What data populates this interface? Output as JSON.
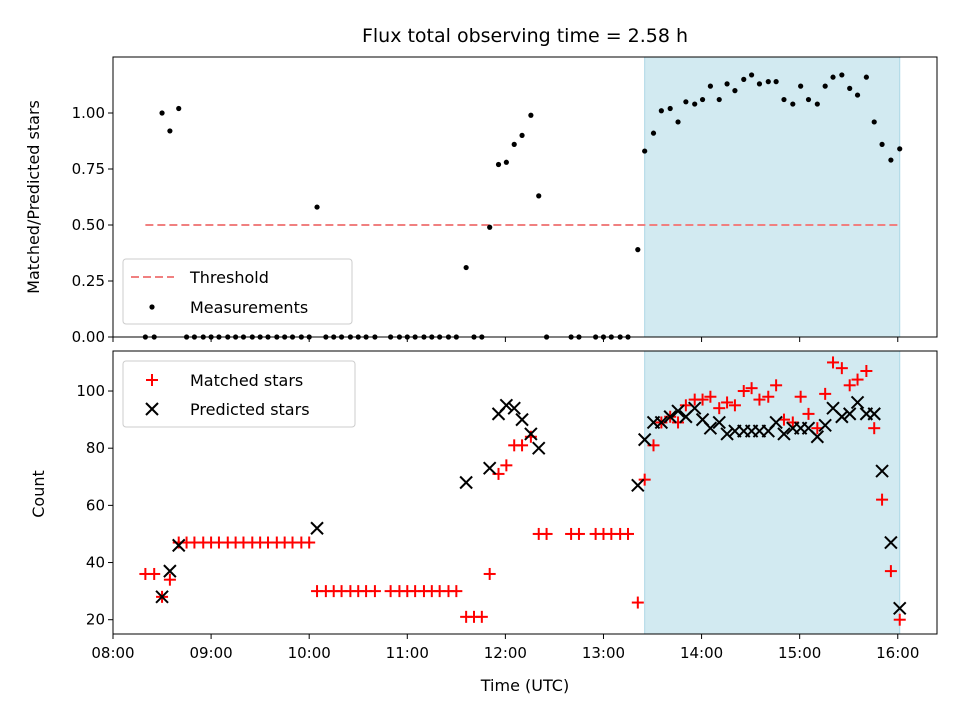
{
  "title": "Flux total observing time = 2.58 h",
  "chart_data": [
    {
      "type": "scatter",
      "ylabel": "Matched/Predicted stars",
      "ylim": [
        0,
        1.25
      ],
      "yticks": [
        0,
        0.25,
        0.5,
        0.75,
        1.0
      ],
      "ytick_labels": [
        "0.00",
        "0.25",
        "0.50",
        "0.75",
        "1.00"
      ],
      "threshold": {
        "name": "Threshold",
        "value": 0.5,
        "x_start": 8.33,
        "x_end": 16.02,
        "color": "#f08080"
      },
      "shaded_region": {
        "x_start": 13.42,
        "x_end": 16.02,
        "color": "#add8e6"
      },
      "legend": {
        "placement": "lower-left",
        "entries": [
          "Threshold",
          "Measurements"
        ]
      },
      "series": [
        {
          "name": "Measurements",
          "marker": "dot",
          "color": "#000000",
          "points": [
            [
              8.33,
              0
            ],
            [
              8.42,
              0
            ],
            [
              8.5,
              1.0
            ],
            [
              8.58,
              0.92
            ],
            [
              8.67,
              1.02
            ],
            [
              8.75,
              0
            ],
            [
              8.83,
              0
            ],
            [
              8.92,
              0
            ],
            [
              9.0,
              0
            ],
            [
              9.08,
              0
            ],
            [
              9.17,
              0
            ],
            [
              9.25,
              0
            ],
            [
              9.33,
              0
            ],
            [
              9.42,
              0
            ],
            [
              9.5,
              0
            ],
            [
              9.58,
              0
            ],
            [
              9.67,
              0
            ],
            [
              9.75,
              0
            ],
            [
              9.83,
              0
            ],
            [
              9.92,
              0
            ],
            [
              10.0,
              0
            ],
            [
              10.08,
              0.58
            ],
            [
              10.17,
              0
            ],
            [
              10.25,
              0
            ],
            [
              10.33,
              0
            ],
            [
              10.42,
              0
            ],
            [
              10.5,
              0
            ],
            [
              10.58,
              0
            ],
            [
              10.67,
              0
            ],
            [
              10.83,
              0
            ],
            [
              10.92,
              0
            ],
            [
              11.0,
              0
            ],
            [
              11.08,
              0
            ],
            [
              11.17,
              0
            ],
            [
              11.25,
              0
            ],
            [
              11.33,
              0
            ],
            [
              11.42,
              0
            ],
            [
              11.5,
              0
            ],
            [
              11.6,
              0.31
            ],
            [
              11.68,
              0
            ],
            [
              11.76,
              0
            ],
            [
              11.84,
              0.49
            ],
            [
              11.93,
              0.77
            ],
            [
              12.01,
              0.78
            ],
            [
              12.09,
              0.86
            ],
            [
              12.17,
              0.9
            ],
            [
              12.26,
              0.99
            ],
            [
              12.34,
              0.63
            ],
            [
              12.42,
              0
            ],
            [
              12.67,
              0
            ],
            [
              12.75,
              0
            ],
            [
              12.92,
              0
            ],
            [
              13.0,
              0
            ],
            [
              13.08,
              0
            ],
            [
              13.17,
              0
            ],
            [
              13.25,
              0
            ],
            [
              13.35,
              0.39
            ],
            [
              13.42,
              0.83
            ],
            [
              13.51,
              0.91
            ],
            [
              13.59,
              1.01
            ],
            [
              13.68,
              1.02
            ],
            [
              13.76,
              0.96
            ],
            [
              13.84,
              1.05
            ],
            [
              13.93,
              1.04
            ],
            [
              14.01,
              1.06
            ],
            [
              14.09,
              1.12
            ],
            [
              14.18,
              1.06
            ],
            [
              14.26,
              1.13
            ],
            [
              14.34,
              1.1
            ],
            [
              14.43,
              1.15
            ],
            [
              14.51,
              1.17
            ],
            [
              14.59,
              1.13
            ],
            [
              14.68,
              1.14
            ],
            [
              14.76,
              1.14
            ],
            [
              14.84,
              1.06
            ],
            [
              14.93,
              1.04
            ],
            [
              15.01,
              1.12
            ],
            [
              15.09,
              1.06
            ],
            [
              15.18,
              1.04
            ],
            [
              15.26,
              1.12
            ],
            [
              15.34,
              1.16
            ],
            [
              15.43,
              1.17
            ],
            [
              15.51,
              1.11
            ],
            [
              15.59,
              1.08
            ],
            [
              15.68,
              1.16
            ],
            [
              15.76,
              0.96
            ],
            [
              15.84,
              0.86
            ],
            [
              15.93,
              0.79
            ],
            [
              16.02,
              0.84
            ]
          ]
        }
      ]
    },
    {
      "type": "scatter",
      "xlabel": "Time (UTC)",
      "ylabel": "Count",
      "xlim": [
        8.0,
        16.4
      ],
      "ylim": [
        15,
        114
      ],
      "xticks": [
        8,
        9,
        10,
        11,
        12,
        13,
        14,
        15,
        16
      ],
      "xtick_labels": [
        "08:00",
        "09:00",
        "10:00",
        "11:00",
        "12:00",
        "13:00",
        "14:00",
        "15:00",
        "16:00"
      ],
      "yticks": [
        20,
        40,
        60,
        80,
        100
      ],
      "ytick_labels": [
        "20",
        "40",
        "60",
        "80",
        "100"
      ],
      "shaded_region": {
        "x_start": 13.42,
        "x_end": 16.02,
        "color": "#add8e6"
      },
      "legend": {
        "placement": "top-left",
        "entries": [
          "Matched stars",
          "Predicted stars"
        ]
      },
      "series": [
        {
          "name": "Matched stars",
          "marker": "plus",
          "color": "#ff0000",
          "points": [
            [
              8.33,
              36
            ],
            [
              8.42,
              36
            ],
            [
              8.5,
              28
            ],
            [
              8.58,
              34
            ],
            [
              8.67,
              47
            ],
            [
              8.75,
              47
            ],
            [
              8.83,
              47
            ],
            [
              8.92,
              47
            ],
            [
              9.0,
              47
            ],
            [
              9.08,
              47
            ],
            [
              9.17,
              47
            ],
            [
              9.25,
              47
            ],
            [
              9.33,
              47
            ],
            [
              9.42,
              47
            ],
            [
              9.5,
              47
            ],
            [
              9.58,
              47
            ],
            [
              9.67,
              47
            ],
            [
              9.75,
              47
            ],
            [
              9.83,
              47
            ],
            [
              9.92,
              47
            ],
            [
              10.0,
              47
            ],
            [
              10.08,
              30
            ],
            [
              10.17,
              30
            ],
            [
              10.25,
              30
            ],
            [
              10.33,
              30
            ],
            [
              10.42,
              30
            ],
            [
              10.5,
              30
            ],
            [
              10.58,
              30
            ],
            [
              10.67,
              30
            ],
            [
              10.83,
              30
            ],
            [
              10.92,
              30
            ],
            [
              11.0,
              30
            ],
            [
              11.08,
              30
            ],
            [
              11.17,
              30
            ],
            [
              11.25,
              30
            ],
            [
              11.33,
              30
            ],
            [
              11.42,
              30
            ],
            [
              11.5,
              30
            ],
            [
              11.6,
              21
            ],
            [
              11.68,
              21
            ],
            [
              11.76,
              21
            ],
            [
              11.84,
              36
            ],
            [
              11.93,
              71
            ],
            [
              12.01,
              74
            ],
            [
              12.09,
              81
            ],
            [
              12.17,
              81
            ],
            [
              12.26,
              84
            ],
            [
              12.34,
              50
            ],
            [
              12.42,
              50
            ],
            [
              12.67,
              50
            ],
            [
              12.75,
              50
            ],
            [
              12.92,
              50
            ],
            [
              13.0,
              50
            ],
            [
              13.08,
              50
            ],
            [
              13.17,
              50
            ],
            [
              13.25,
              50
            ],
            [
              13.35,
              26
            ],
            [
              13.42,
              69
            ],
            [
              13.51,
              81
            ],
            [
              13.59,
              89
            ],
            [
              13.68,
              91
            ],
            [
              13.76,
              89
            ],
            [
              13.84,
              95
            ],
            [
              13.93,
              97
            ],
            [
              14.01,
              97
            ],
            [
              14.09,
              98
            ],
            [
              14.18,
              94
            ],
            [
              14.26,
              96
            ],
            [
              14.34,
              95
            ],
            [
              14.43,
              100
            ],
            [
              14.51,
              101
            ],
            [
              14.59,
              97
            ],
            [
              14.68,
              98
            ],
            [
              14.76,
              102
            ],
            [
              14.84,
              90
            ],
            [
              14.93,
              89
            ],
            [
              15.01,
              98
            ],
            [
              15.09,
              92
            ],
            [
              15.18,
              87
            ],
            [
              15.26,
              99
            ],
            [
              15.34,
              110
            ],
            [
              15.43,
              108
            ],
            [
              15.51,
              102
            ],
            [
              15.59,
              104
            ],
            [
              15.68,
              107
            ],
            [
              15.76,
              87
            ],
            [
              15.84,
              62
            ],
            [
              15.93,
              37
            ],
            [
              16.02,
              20
            ]
          ]
        },
        {
          "name": "Predicted stars",
          "marker": "x",
          "color": "#000000",
          "points": [
            [
              8.5,
              28
            ],
            [
              8.58,
              37
            ],
            [
              8.67,
              46
            ],
            [
              10.08,
              52
            ],
            [
              11.6,
              68
            ],
            [
              11.84,
              73
            ],
            [
              11.93,
              92
            ],
            [
              12.01,
              95
            ],
            [
              12.09,
              94
            ],
            [
              12.17,
              90
            ],
            [
              12.26,
              85
            ],
            [
              12.34,
              80
            ],
            [
              13.35,
              67
            ],
            [
              13.42,
              83
            ],
            [
              13.51,
              89
            ],
            [
              13.59,
              89
            ],
            [
              13.68,
              91
            ],
            [
              13.76,
              93
            ],
            [
              13.84,
              91
            ],
            [
              13.93,
              94
            ],
            [
              14.01,
              90
            ],
            [
              14.09,
              87
            ],
            [
              14.18,
              89
            ],
            [
              14.26,
              85
            ],
            [
              14.34,
              86
            ],
            [
              14.43,
              86
            ],
            [
              14.51,
              86
            ],
            [
              14.59,
              86
            ],
            [
              14.68,
              86
            ],
            [
              14.76,
              89
            ],
            [
              14.84,
              85
            ],
            [
              14.93,
              87
            ],
            [
              15.01,
              87
            ],
            [
              15.09,
              87
            ],
            [
              15.18,
              84
            ],
            [
              15.26,
              88
            ],
            [
              15.34,
              94
            ],
            [
              15.43,
              91
            ],
            [
              15.51,
              92
            ],
            [
              15.59,
              96
            ],
            [
              15.68,
              92
            ],
            [
              15.76,
              92
            ],
            [
              15.84,
              72
            ],
            [
              15.93,
              47
            ],
            [
              16.02,
              24
            ]
          ]
        }
      ]
    }
  ]
}
